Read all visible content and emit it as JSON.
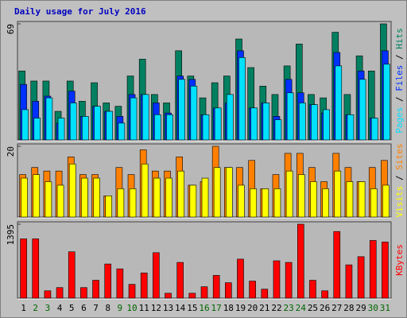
{
  "chart_data": {
    "type": "bar",
    "title": "Daily usage for July 2016",
    "legend_separator": "/",
    "categories": [
      "1",
      "2",
      "3",
      "4",
      "5",
      "6",
      "7",
      "8",
      "9",
      "10",
      "11",
      "12",
      "13",
      "14",
      "15",
      "16",
      "17",
      "18",
      "19",
      "20",
      "21",
      "22",
      "23",
      "24",
      "25",
      "26",
      "27",
      "28",
      "29",
      "30",
      "31"
    ],
    "category_colors": [
      "#000000",
      "#006400",
      "#006400",
      "#000000",
      "#000000",
      "#000000",
      "#000000",
      "#000000",
      "#006400",
      "#006400",
      "#000000",
      "#000000",
      "#000000",
      "#000000",
      "#000000",
      "#006400",
      "#006400",
      "#000000",
      "#000000",
      "#000000",
      "#000000",
      "#000000",
      "#006400",
      "#006400",
      "#000000",
      "#000000",
      "#000000",
      "#000000",
      "#000000",
      "#006400",
      "#006400"
    ],
    "panels": [
      {
        "ylim": [
          0,
          69
        ],
        "yticks": [
          69
        ],
        "series": [
          {
            "name": "Hits",
            "color": "#008060",
            "values": [
              41,
              35,
              35,
              17,
              35,
              23,
              34,
              22,
              20,
              38,
              48,
              27,
              22,
              53,
              38,
              25,
              34,
              38,
              60,
              43,
              32,
              27,
              44,
              57,
              27,
              25,
              64,
              27,
              50,
              41,
              69
            ]
          },
          {
            "name": "Files",
            "color": "#0030ff",
            "values": [
              33,
              23,
              26,
              10,
              29,
              14,
              20,
              17,
              14,
              27,
              27,
              22,
              16,
              38,
              36,
              15,
              19,
              22,
              53,
              19,
              22,
              14,
              36,
              28,
              21,
              16,
              52,
              15,
              41,
              13,
              53
            ]
          },
          {
            "name": "Pages",
            "color": "#00e0ff",
            "values": [
              18,
              13,
              25,
              13,
              22,
              14,
              20,
              17,
              10,
              25,
              27,
              15,
              15,
              36,
              32,
              15,
              19,
              27,
              49,
              19,
              22,
              12,
              28,
              22,
              21,
              18,
              44,
              15,
              36,
              13,
              45
            ]
          }
        ]
      },
      {
        "ylim": [
          0,
          20
        ],
        "yticks": [
          20
        ],
        "series": [
          {
            "name": "Sites",
            "color": "#ff8000",
            "values": [
              12,
              14,
              13,
              13,
              17,
              12,
              12,
              6,
              14,
              12,
              19,
              13,
              13,
              17,
              9,
              10,
              20,
              14,
              14,
              16,
              8,
              12,
              18,
              18,
              14,
              10,
              18,
              14,
              10,
              14,
              16
            ]
          },
          {
            "name": "Visits",
            "color": "#ffff00",
            "values": [
              11,
              12,
              10,
              9,
              15,
              11,
              11,
              6,
              8,
              8,
              15,
              11,
              11,
              13,
              9,
              11,
              14,
              14,
              9,
              8,
              8,
              8,
              13,
              12,
              10,
              8,
              13,
              10,
              10,
              8,
              9
            ]
          }
        ]
      },
      {
        "ylim": [
          0,
          1395
        ],
        "yticks": [
          1395
        ],
        "series": [
          {
            "name": "KBytes",
            "color": "#ff0000",
            "values": [
              1119,
              1119,
              138,
              199,
              874,
              199,
              337,
              644,
              552,
              260,
              475,
              858,
              92,
              674,
              92,
              215,
              429,
              291,
              736,
              322,
              169,
              705,
              674,
              1395,
              337,
              138,
              1257,
              628,
              782,
              1088,
              1058
            ]
          }
        ]
      }
    ]
  }
}
